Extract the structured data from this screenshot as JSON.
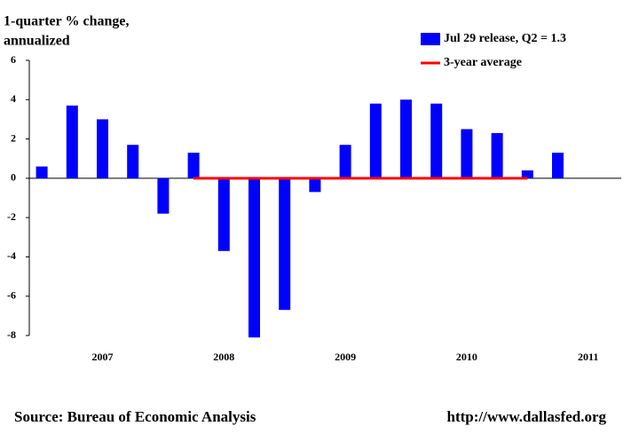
{
  "chart_data": {
    "type": "bar",
    "ylabel": [
      "1-quarter % change,",
      "annualized"
    ],
    "categories": [
      null,
      null,
      "2007",
      null,
      null,
      null,
      "2008",
      null,
      null,
      null,
      "2009",
      null,
      null,
      null,
      "2010",
      null,
      null,
      null,
      "2011"
    ],
    "series": [
      {
        "name": "Jul 29 release, Q2 = 1.3",
        "type": "bar",
        "color": "#0000ff",
        "values": [
          0.6,
          3.7,
          3.0,
          1.7,
          -1.8,
          1.3,
          -3.7,
          -8.1,
          -6.7,
          -0.7,
          1.7,
          3.8,
          4.0,
          3.8,
          2.5,
          2.3,
          0.4,
          1.3,
          null
        ]
      },
      {
        "name": "3-year average",
        "type": "line",
        "color": "#ff0000",
        "values": [
          null,
          null,
          null,
          null,
          null,
          0,
          0,
          0,
          0,
          0,
          0,
          0,
          0,
          0,
          0,
          0,
          0,
          null,
          null
        ]
      }
    ],
    "ylim": [
      -8,
      6
    ],
    "yticks": [
      6,
      4,
      2,
      0,
      -2,
      -4,
      -6,
      -8
    ],
    "source": "Source: Bureau of Economic Analysis",
    "url": "http://www.dallasfed.org"
  }
}
